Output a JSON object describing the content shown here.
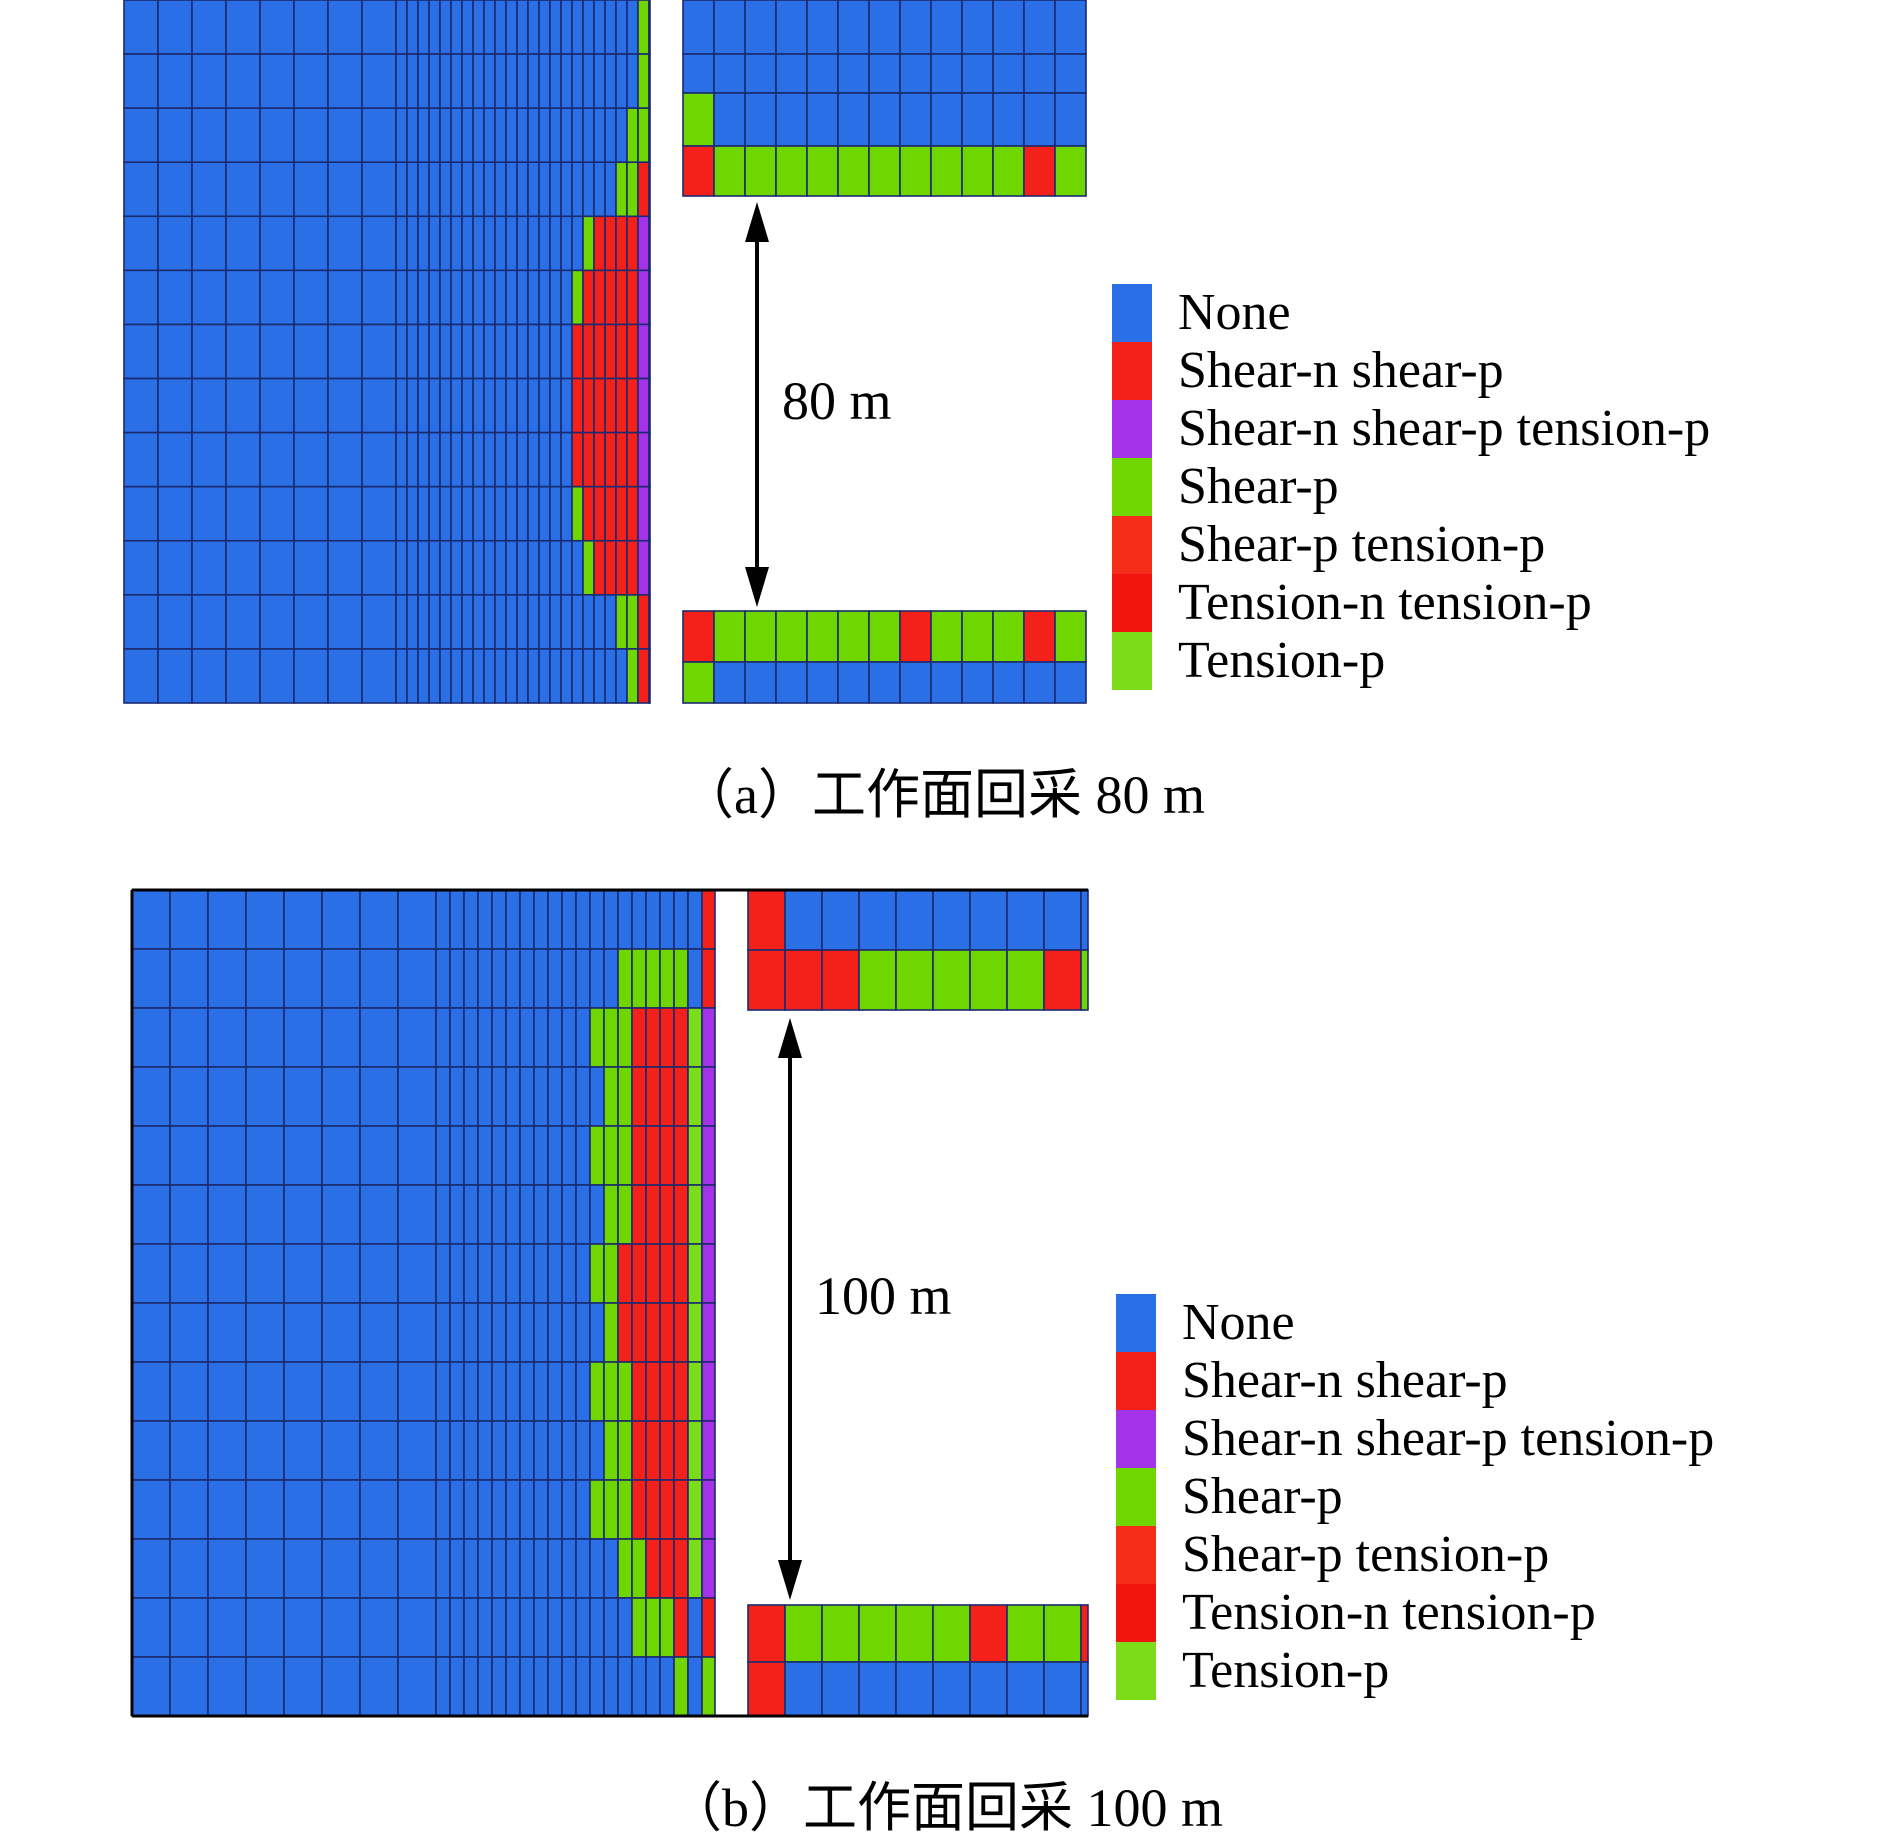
{
  "legend_colors": {
    "None": "#2b6fe6",
    "Shear-n shear-p": "#f4211b",
    "Shear-n shear-p tension-p": "#a433e8",
    "Shear-p": "#6fd600",
    "Shear-p tension-p": "#f52c18",
    "Tension-n tension-p": "#f2150f",
    "Tension-p": "#7ddc1a"
  },
  "grid_line_color": "#1a2a6e",
  "panels": [
    {
      "id": "a",
      "caption": "（a）工作面回采 80 m",
      "distance_label": "80 m",
      "legend": [
        {
          "label": "None",
          "color": "#2b6fe6"
        },
        {
          "label": "Shear-n shear-p",
          "color": "#f4211b"
        },
        {
          "label": "Shear-n shear-p tension-p",
          "color": "#a433e8"
        },
        {
          "label": "Shear-p",
          "color": "#6fd600"
        },
        {
          "label": "Shear-p tension-p",
          "color": "#f52c18"
        },
        {
          "label": "Tension-n tension-p",
          "color": "#f2150f"
        },
        {
          "label": "Tension-p",
          "color": "#7ddc1a"
        }
      ]
    },
    {
      "id": "b",
      "caption": "（b）工作面回采 100 m",
      "distance_label": "100 m",
      "legend": [
        {
          "label": "None",
          "color": "#2b6fe6"
        },
        {
          "label": "Shear-n shear-p",
          "color": "#f4211b"
        },
        {
          "label": "Shear-n shear-p tension-p",
          "color": "#a433e8"
        },
        {
          "label": "Shear-p",
          "color": "#6fd600"
        },
        {
          "label": "Shear-p tension-p",
          "color": "#f52c18"
        },
        {
          "label": "Tension-n tension-p",
          "color": "#f2150f"
        },
        {
          "label": "Tension-p",
          "color": "#7ddc1a"
        }
      ]
    }
  ]
}
